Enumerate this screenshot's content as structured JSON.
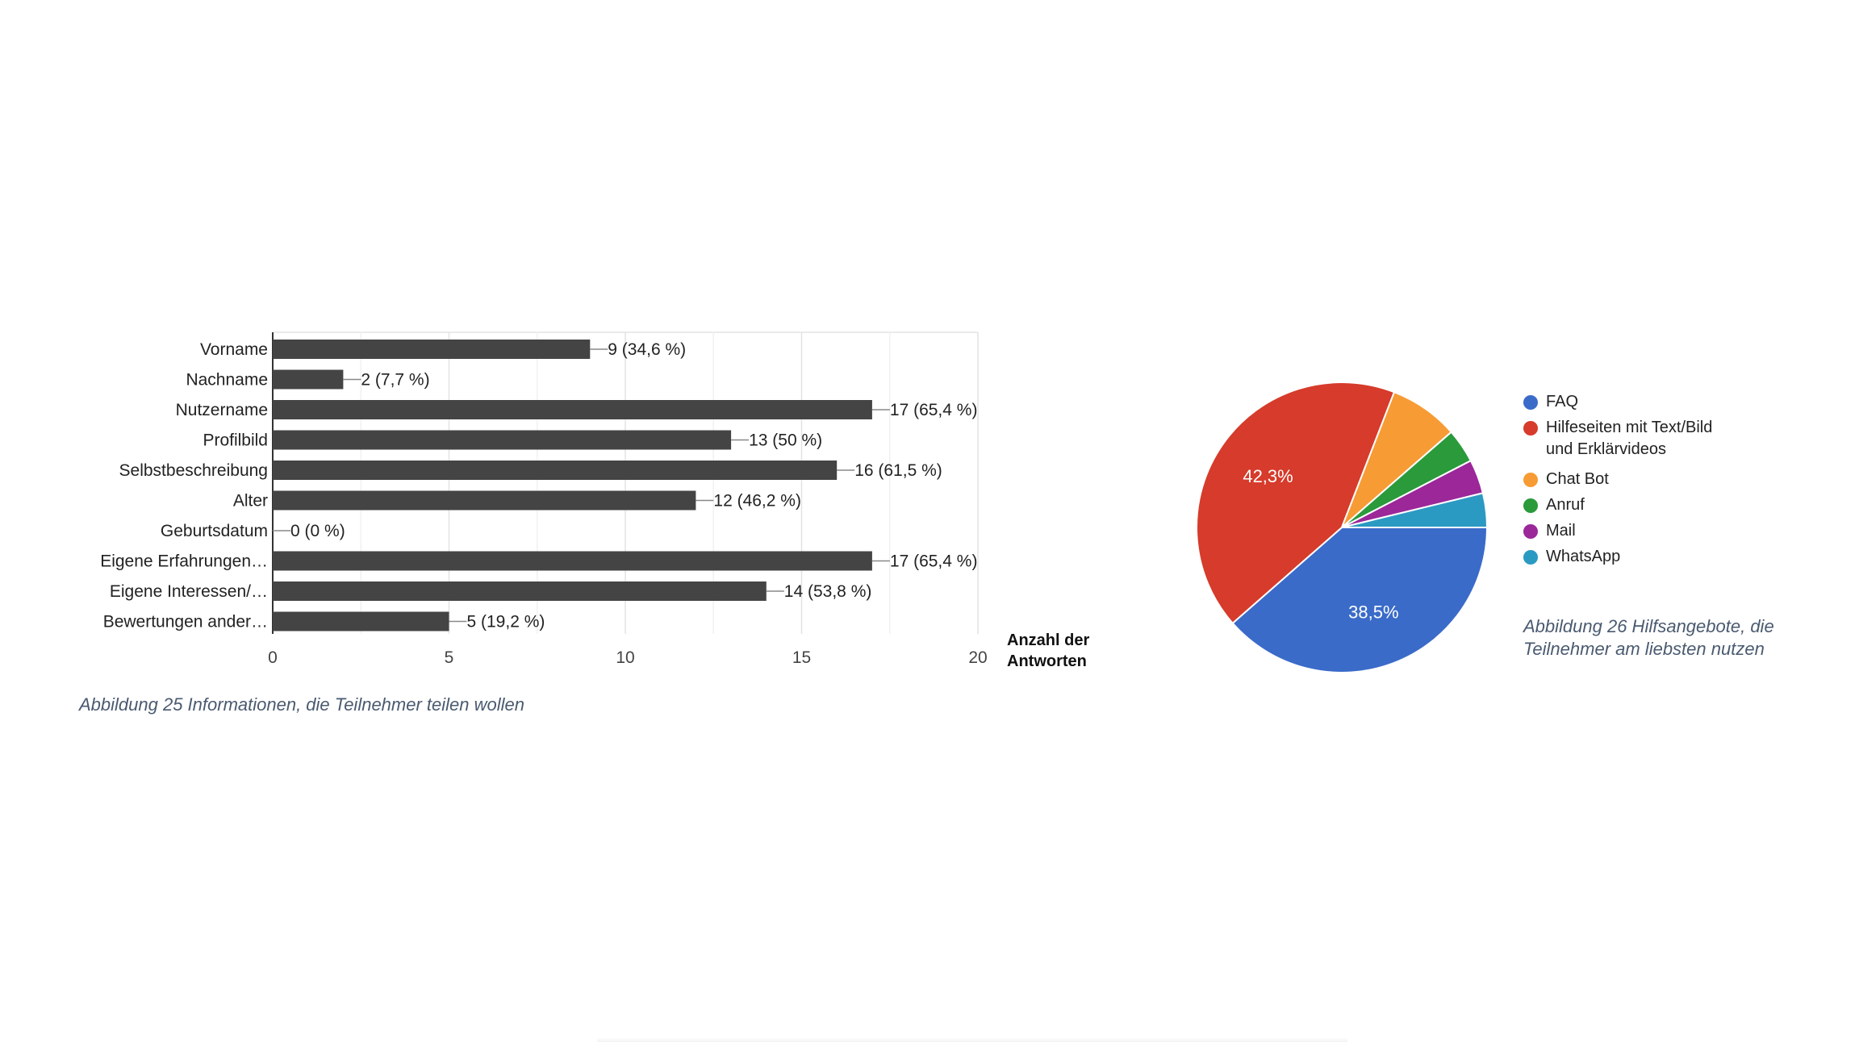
{
  "chart_data": [
    {
      "type": "bar",
      "orientation": "horizontal",
      "categories": [
        "Vorname",
        "Nachname",
        "Nutzername",
        "Profilbild",
        "Selbstbeschreibung",
        "Alter",
        "Geburtsdatum",
        "Eigene Erfahrungen…",
        "Eigene Interessen/…",
        "Bewertungen ander…"
      ],
      "values": [
        9,
        2,
        17,
        13,
        16,
        12,
        0,
        17,
        14,
        5
      ],
      "data_labels": [
        "9 (34,6 %)",
        "2 (7,7 %)",
        "17 (65,4 %)",
        "13 (50 %)",
        "16 (61,5 %)",
        "12 (46,2 %)",
        "0 (0 %)",
        "17 (65,4 %)",
        "14 (53,8 %)",
        "5 (19,2 %)"
      ],
      "xlabel": "Anzahl der Antworten",
      "xlabel_lines": [
        "Anzahl der",
        "Antworten"
      ],
      "xlim": [
        0,
        20
      ],
      "xticks": [
        0,
        5,
        10,
        15,
        20
      ],
      "grid": true,
      "bar_color": "#444444"
    },
    {
      "type": "pie",
      "labels": [
        "FAQ",
        "Hilfeseiten mit Text/Bild und Erklärvideos",
        "Chat Bot",
        "Anruf",
        "Mail",
        "WhatsApp"
      ],
      "legend_lines": [
        [
          "FAQ"
        ],
        [
          "Hilfeseiten mit Text/Bild",
          "und Erklärvideos"
        ],
        [
          "Chat Bot"
        ],
        [
          "Anruf"
        ],
        [
          "Mail"
        ],
        [
          "WhatsApp"
        ]
      ],
      "values": [
        38.5,
        42.3,
        7.7,
        3.8,
        3.8,
        3.8
      ],
      "slice_labels": [
        "38,5%",
        "42,3%",
        "",
        "",
        "",
        ""
      ],
      "colors": [
        "#3a6bc9",
        "#d63b2b",
        "#f79b35",
        "#2a9a3b",
        "#9b2799",
        "#2b9ac2"
      ],
      "legend_position": "right"
    }
  ],
  "captions": {
    "bar": "Abbildung 25 Informationen, die Teilnehmer teilen wollen",
    "pie": "Abbildung 26 Hilfsangebote, die Teilnehmer am liebsten nutzen"
  }
}
